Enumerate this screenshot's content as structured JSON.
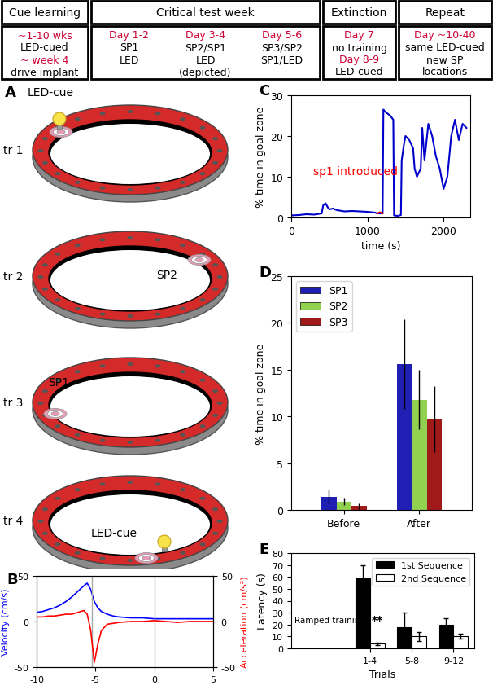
{
  "schedule": {
    "columns": [
      {
        "header": "Cue learning",
        "groups": [
          {
            "lines": [
              {
                "text": "~1-10 wks",
                "color": "#cc0033"
              },
              {
                "text": "LED-cued",
                "color": "#000000"
              },
              {
                "text": "~ week 4",
                "color": "#cc0033"
              },
              {
                "text": "drive implant",
                "color": "#000000"
              }
            ]
          }
        ]
      },
      {
        "header": "Critical test week",
        "groups": [
          {
            "lines": [
              {
                "text": "Day 1-2",
                "color": "#cc0033"
              },
              {
                "text": "SP1",
                "color": "#000000"
              },
              {
                "text": "LED",
                "color": "#000000"
              }
            ]
          },
          {
            "lines": [
              {
                "text": "Day 3-4",
                "color": "#cc0033"
              },
              {
                "text": "SP2/SP1",
                "color": "#000000"
              },
              {
                "text": "LED",
                "color": "#000000"
              },
              {
                "text": "(depicted)",
                "color": "#000000"
              }
            ]
          },
          {
            "lines": [
              {
                "text": "Day 5-6",
                "color": "#cc0033"
              },
              {
                "text": "SP3/SP2",
                "color": "#000000"
              },
              {
                "text": "SP1/LED",
                "color": "#000000"
              }
            ]
          }
        ]
      },
      {
        "header": "Extinction",
        "groups": [
          {
            "lines": [
              {
                "text": "Day 7",
                "color": "#cc0033"
              },
              {
                "text": "no training",
                "color": "#000000"
              },
              {
                "text": "Day 8-9",
                "color": "#cc0033"
              },
              {
                "text": "LED-cued",
                "color": "#000000"
              }
            ]
          }
        ]
      },
      {
        "header": "Repeat",
        "groups": [
          {
            "lines": [
              {
                "text": "Day ~10-40",
                "color": "#cc0033"
              },
              {
                "text": "same LED-cued",
                "color": "#000000"
              },
              {
                "text": "new SP",
                "color": "#000000"
              },
              {
                "text": "locations",
                "color": "#000000"
              }
            ]
          }
        ]
      }
    ]
  },
  "diagram": {
    "panel": "A",
    "title": "LED-cue",
    "trials": [
      {
        "label": "tr 1"
      },
      {
        "label": "tr 2",
        "text": "SP2"
      },
      {
        "label": "tr 3",
        "text": "SP1"
      },
      {
        "label": "tr 4",
        "text": "LED-cue"
      }
    ]
  },
  "chart_data": [
    {
      "panel": "B",
      "type": "line",
      "x": [
        -10,
        -9.5,
        -9,
        -8.5,
        -8,
        -7.5,
        -7,
        -6.5,
        -6,
        -5.7,
        -5.4,
        -5.1,
        -4.8,
        -4.5,
        -4,
        -3.5,
        -3,
        -2,
        -1,
        0,
        1,
        2,
        3,
        4,
        5
      ],
      "xlim": [
        -10,
        5
      ],
      "xticks": [
        -10,
        -5,
        0,
        5
      ],
      "ylim": [
        -50,
        50
      ],
      "yticks": [
        -50,
        0,
        50
      ],
      "y2lim": [
        -50,
        50
      ],
      "y2ticks": [
        -50,
        0,
        50
      ],
      "y_label": "Velocity (cm/s)",
      "y2_label": "Acceleration (cm/s²)",
      "vlines": [
        -5.3,
        0
      ],
      "series": [
        {
          "color": "#0000ff",
          "values": [
            10,
            11,
            13,
            15,
            18,
            22,
            27,
            33,
            39,
            42,
            35,
            22,
            15,
            11,
            8,
            6,
            5,
            4,
            4,
            3,
            3,
            3,
            3,
            3,
            3
          ]
        },
        {
          "color": "#ff0000",
          "axis": "y2",
          "values": [
            5,
            5,
            6,
            6,
            7,
            8,
            8,
            10,
            12,
            8,
            -10,
            -45,
            -25,
            -10,
            -3,
            -2,
            -1,
            0,
            0,
            1,
            0,
            -1,
            0,
            0,
            0
          ]
        }
      ]
    },
    {
      "panel": "C",
      "type": "line",
      "xlim": [
        0,
        2350
      ],
      "xticks": [
        0,
        1000,
        2000
      ],
      "ylim": [
        0,
        30
      ],
      "yticks": [
        0,
        10,
        20,
        30
      ],
      "x_label": "time (s)",
      "y_label": "% time in goal zone",
      "annotation": "sp1 introduced",
      "series": [
        {
          "color": "#0000cc",
          "x": [
            0,
            100,
            200,
            300,
            400,
            420,
            450,
            480,
            500,
            550,
            600,
            700,
            800,
            900,
            1000,
            1100,
            1130,
            1200,
            1210,
            1230,
            1300,
            1340,
            1350,
            1400,
            1440,
            1450,
            1480,
            1500,
            1550,
            1600,
            1620,
            1650,
            1700,
            1720,
            1750,
            1800,
            1850,
            1900,
            1950,
            2000,
            2050,
            2100,
            2150,
            2200,
            2250,
            2300
          ],
          "values": [
            0.5,
            0.6,
            0.8,
            0.7,
            1.0,
            3.0,
            3.5,
            2.5,
            2.0,
            2.2,
            1.8,
            1.5,
            1.6,
            1.5,
            1.4,
            1.2,
            1.0,
            1.0,
            26.5,
            26,
            25,
            24,
            0.5,
            0.4,
            0.6,
            14,
            18,
            20,
            19,
            17,
            12,
            10,
            12,
            22,
            14,
            23,
            20,
            15,
            12,
            7,
            10,
            20,
            24,
            19,
            23,
            22
          ]
        },
        {
          "color": "#ff0000",
          "x": [
            1130,
            1165,
            1200
          ],
          "values": [
            1.0,
            1.3,
            1.0
          ]
        }
      ]
    },
    {
      "panel": "D",
      "type": "bar",
      "categories": [
        "Before",
        "After"
      ],
      "ylim": [
        0,
        25
      ],
      "yticks": [
        0,
        5,
        10,
        15,
        20,
        25
      ],
      "y_label": "% time in goal zone",
      "legend": "upper left",
      "series": [
        {
          "name": "SP1",
          "color": "#1f1fb4",
          "values": [
            1.4,
            15.6
          ],
          "errors": [
            0.8,
            4.8
          ]
        },
        {
          "name": "SP2",
          "color": "#92d050",
          "values": [
            0.9,
            11.8
          ],
          "errors": [
            0.4,
            3.2
          ]
        },
        {
          "name": "SP3",
          "color": "#a01a1a",
          "values": [
            0.4,
            9.7
          ],
          "errors": [
            0.3,
            3.5
          ]
        }
      ]
    },
    {
      "panel": "E",
      "type": "bar",
      "categories": [
        "1-4",
        "5-8",
        "9-12"
      ],
      "ylim": [
        0,
        80
      ],
      "yticks": [
        0,
        10,
        20,
        30,
        40,
        50,
        60,
        70,
        80
      ],
      "y_label": "Latency (s)",
      "x_label": "Trials",
      "legend": "upper right",
      "annotations": [
        "Ramped training",
        "**"
      ],
      "series": [
        {
          "name": "1st Sequence",
          "color": "#000000",
          "values": [
            59,
            18,
            20
          ],
          "errors": [
            11,
            12,
            5
          ]
        },
        {
          "name": "2nd Sequence",
          "color": "#ffffff",
          "values": [
            4,
            10,
            10
          ],
          "errors": [
            1,
            4,
            2
          ]
        }
      ]
    }
  ]
}
